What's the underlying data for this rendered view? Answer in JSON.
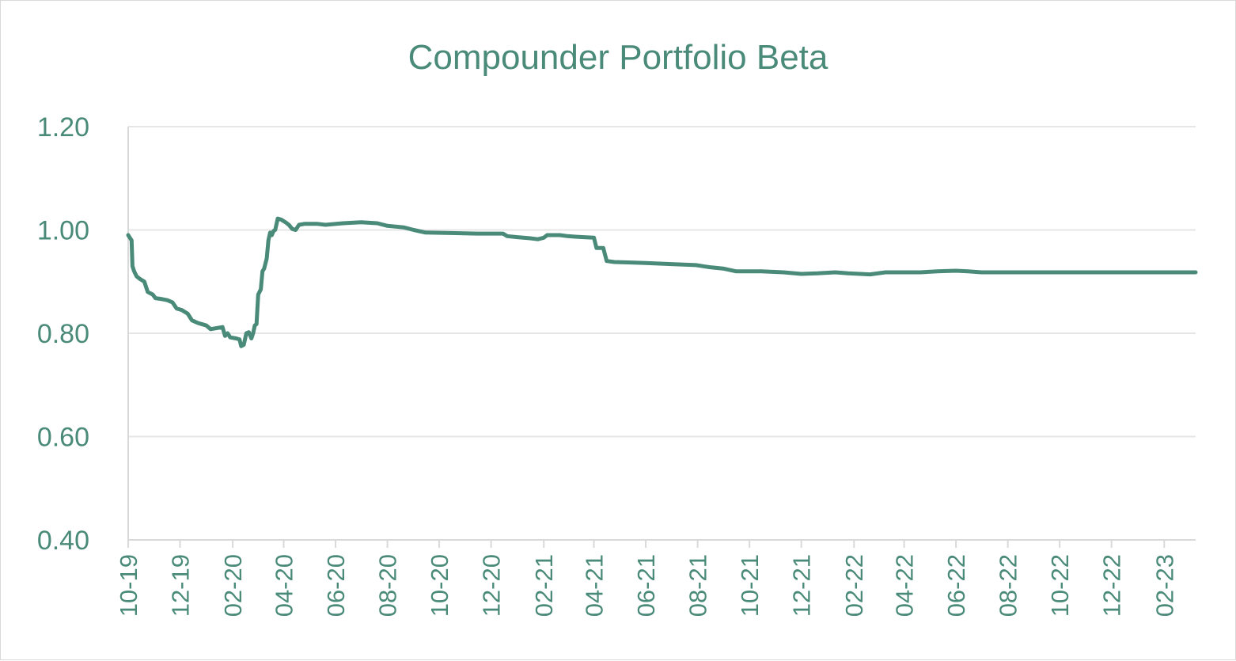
{
  "chart_data": {
    "type": "line",
    "title": "Compounder Portfolio Beta",
    "xlabel": "",
    "ylabel": "",
    "ylim": [
      0.4,
      1.2
    ],
    "yticks": [
      "0.40",
      "0.60",
      "0.80",
      "1.00",
      "1.20"
    ],
    "yticks_values": [
      0.4,
      0.6,
      0.8,
      1.0,
      1.2
    ],
    "xlim": [
      "2019-10-01",
      "2023-03-10"
    ],
    "xticks": [
      "10-19",
      "12-19",
      "02-20",
      "04-20",
      "06-20",
      "08-20",
      "10-20",
      "12-20",
      "02-21",
      "04-21",
      "06-21",
      "08-21",
      "10-21",
      "12-21",
      "02-22",
      "04-22",
      "06-22",
      "08-22",
      "10-22",
      "12-22",
      "02-23"
    ],
    "xticks_dates": [
      "2019-10-01",
      "2019-12-01",
      "2020-02-01",
      "2020-04-01",
      "2020-06-01",
      "2020-08-01",
      "2020-10-01",
      "2020-12-01",
      "2021-02-01",
      "2021-04-01",
      "2021-06-01",
      "2021-08-01",
      "2021-10-01",
      "2021-12-01",
      "2022-02-01",
      "2022-04-01",
      "2022-06-01",
      "2022-08-01",
      "2022-10-01",
      "2022-12-01",
      "2023-02-01"
    ],
    "grid": "horizontal",
    "legend": "none",
    "colors": {
      "line": "#4a8a78",
      "text": "#4a8a78",
      "grid": "#e6e6e6",
      "axis": "#d9d9d9"
    },
    "series": [
      {
        "values": [
          [
            "2019-10-01",
            0.99
          ],
          [
            "2019-10-03",
            0.985
          ],
          [
            "2019-10-05",
            0.98
          ],
          [
            "2019-10-06",
            0.93
          ],
          [
            "2019-10-08",
            0.92
          ],
          [
            "2019-10-11",
            0.91
          ],
          [
            "2019-10-15",
            0.905
          ],
          [
            "2019-10-20",
            0.9
          ],
          [
            "2019-10-24",
            0.88
          ],
          [
            "2019-10-30",
            0.875
          ],
          [
            "2019-11-02",
            0.868
          ],
          [
            "2019-11-10",
            0.866
          ],
          [
            "2019-11-16",
            0.864
          ],
          [
            "2019-11-22",
            0.86
          ],
          [
            "2019-11-27",
            0.848
          ],
          [
            "2019-12-03",
            0.845
          ],
          [
            "2019-12-10",
            0.838
          ],
          [
            "2019-12-15",
            0.825
          ],
          [
            "2019-12-22",
            0.82
          ],
          [
            "2020-01-01",
            0.815
          ],
          [
            "2020-01-06",
            0.808
          ],
          [
            "2020-01-13",
            0.81
          ],
          [
            "2020-01-20",
            0.812
          ],
          [
            "2020-01-23",
            0.795
          ],
          [
            "2020-01-26",
            0.8
          ],
          [
            "2020-01-29",
            0.792
          ],
          [
            "2020-02-05",
            0.79
          ],
          [
            "2020-02-09",
            0.788
          ],
          [
            "2020-02-11",
            0.775
          ],
          [
            "2020-02-14",
            0.778
          ],
          [
            "2020-02-17",
            0.8
          ],
          [
            "2020-02-20",
            0.802
          ],
          [
            "2020-02-23",
            0.79
          ],
          [
            "2020-02-25",
            0.8
          ],
          [
            "2020-02-27",
            0.815
          ],
          [
            "2020-02-29",
            0.818
          ],
          [
            "2020-03-02",
            0.875
          ],
          [
            "2020-03-05",
            0.885
          ],
          [
            "2020-03-07",
            0.92
          ],
          [
            "2020-03-09",
            0.925
          ],
          [
            "2020-03-12",
            0.945
          ],
          [
            "2020-03-14",
            0.98
          ],
          [
            "2020-03-16",
            0.995
          ],
          [
            "2020-03-18",
            0.99
          ],
          [
            "2020-03-20",
            0.998
          ],
          [
            "2020-03-22",
            1.0
          ],
          [
            "2020-03-25",
            1.022
          ],
          [
            "2020-03-29",
            1.02
          ],
          [
            "2020-04-03",
            1.015
          ],
          [
            "2020-04-07",
            1.01
          ],
          [
            "2020-04-11",
            1.002
          ],
          [
            "2020-04-15",
            1.0
          ],
          [
            "2020-04-19",
            1.01
          ],
          [
            "2020-04-26",
            1.012
          ],
          [
            "2020-05-10",
            1.012
          ],
          [
            "2020-05-20",
            1.01
          ],
          [
            "2020-06-10",
            1.013
          ],
          [
            "2020-07-01",
            1.015
          ],
          [
            "2020-07-20",
            1.013
          ],
          [
            "2020-08-01",
            1.008
          ],
          [
            "2020-08-20",
            1.005
          ],
          [
            "2020-09-01",
            1.0
          ],
          [
            "2020-09-15",
            0.995
          ],
          [
            "2020-10-15",
            0.994
          ],
          [
            "2020-11-15",
            0.993
          ],
          [
            "2020-12-15",
            0.993
          ],
          [
            "2020-12-20",
            0.988
          ],
          [
            "2021-01-01",
            0.986
          ],
          [
            "2021-01-15",
            0.984
          ],
          [
            "2021-01-25",
            0.982
          ],
          [
            "2021-02-01",
            0.985
          ],
          [
            "2021-02-05",
            0.99
          ],
          [
            "2021-02-20",
            0.99
          ],
          [
            "2021-03-01",
            0.988
          ],
          [
            "2021-03-10",
            0.987
          ],
          [
            "2021-03-20",
            0.986
          ],
          [
            "2021-04-01",
            0.985
          ],
          [
            "2021-04-04",
            0.965
          ],
          [
            "2021-04-12",
            0.965
          ],
          [
            "2021-04-16",
            0.94
          ],
          [
            "2021-04-25",
            0.938
          ],
          [
            "2021-05-15",
            0.937
          ],
          [
            "2021-06-01",
            0.936
          ],
          [
            "2021-07-01",
            0.934
          ],
          [
            "2021-07-30",
            0.932
          ],
          [
            "2021-08-15",
            0.928
          ],
          [
            "2021-09-01",
            0.925
          ],
          [
            "2021-09-15",
            0.92
          ],
          [
            "2021-10-15",
            0.92
          ],
          [
            "2021-11-10",
            0.918
          ],
          [
            "2021-12-01",
            0.915
          ],
          [
            "2021-12-20",
            0.916
          ],
          [
            "2022-01-10",
            0.918
          ],
          [
            "2022-01-25",
            0.916
          ],
          [
            "2022-02-20",
            0.914
          ],
          [
            "2022-03-10",
            0.918
          ],
          [
            "2022-04-01",
            0.918
          ],
          [
            "2022-04-20",
            0.918
          ],
          [
            "2022-05-10",
            0.92
          ],
          [
            "2022-06-01",
            0.921
          ],
          [
            "2022-06-15",
            0.92
          ],
          [
            "2022-07-01",
            0.918
          ],
          [
            "2022-08-01",
            0.918
          ],
          [
            "2022-09-01",
            0.918
          ],
          [
            "2022-10-01",
            0.918
          ],
          [
            "2022-11-01",
            0.918
          ],
          [
            "2022-12-01",
            0.918
          ],
          [
            "2023-01-01",
            0.918
          ],
          [
            "2023-02-01",
            0.918
          ],
          [
            "2023-03-10",
            0.918
          ]
        ]
      }
    ]
  }
}
